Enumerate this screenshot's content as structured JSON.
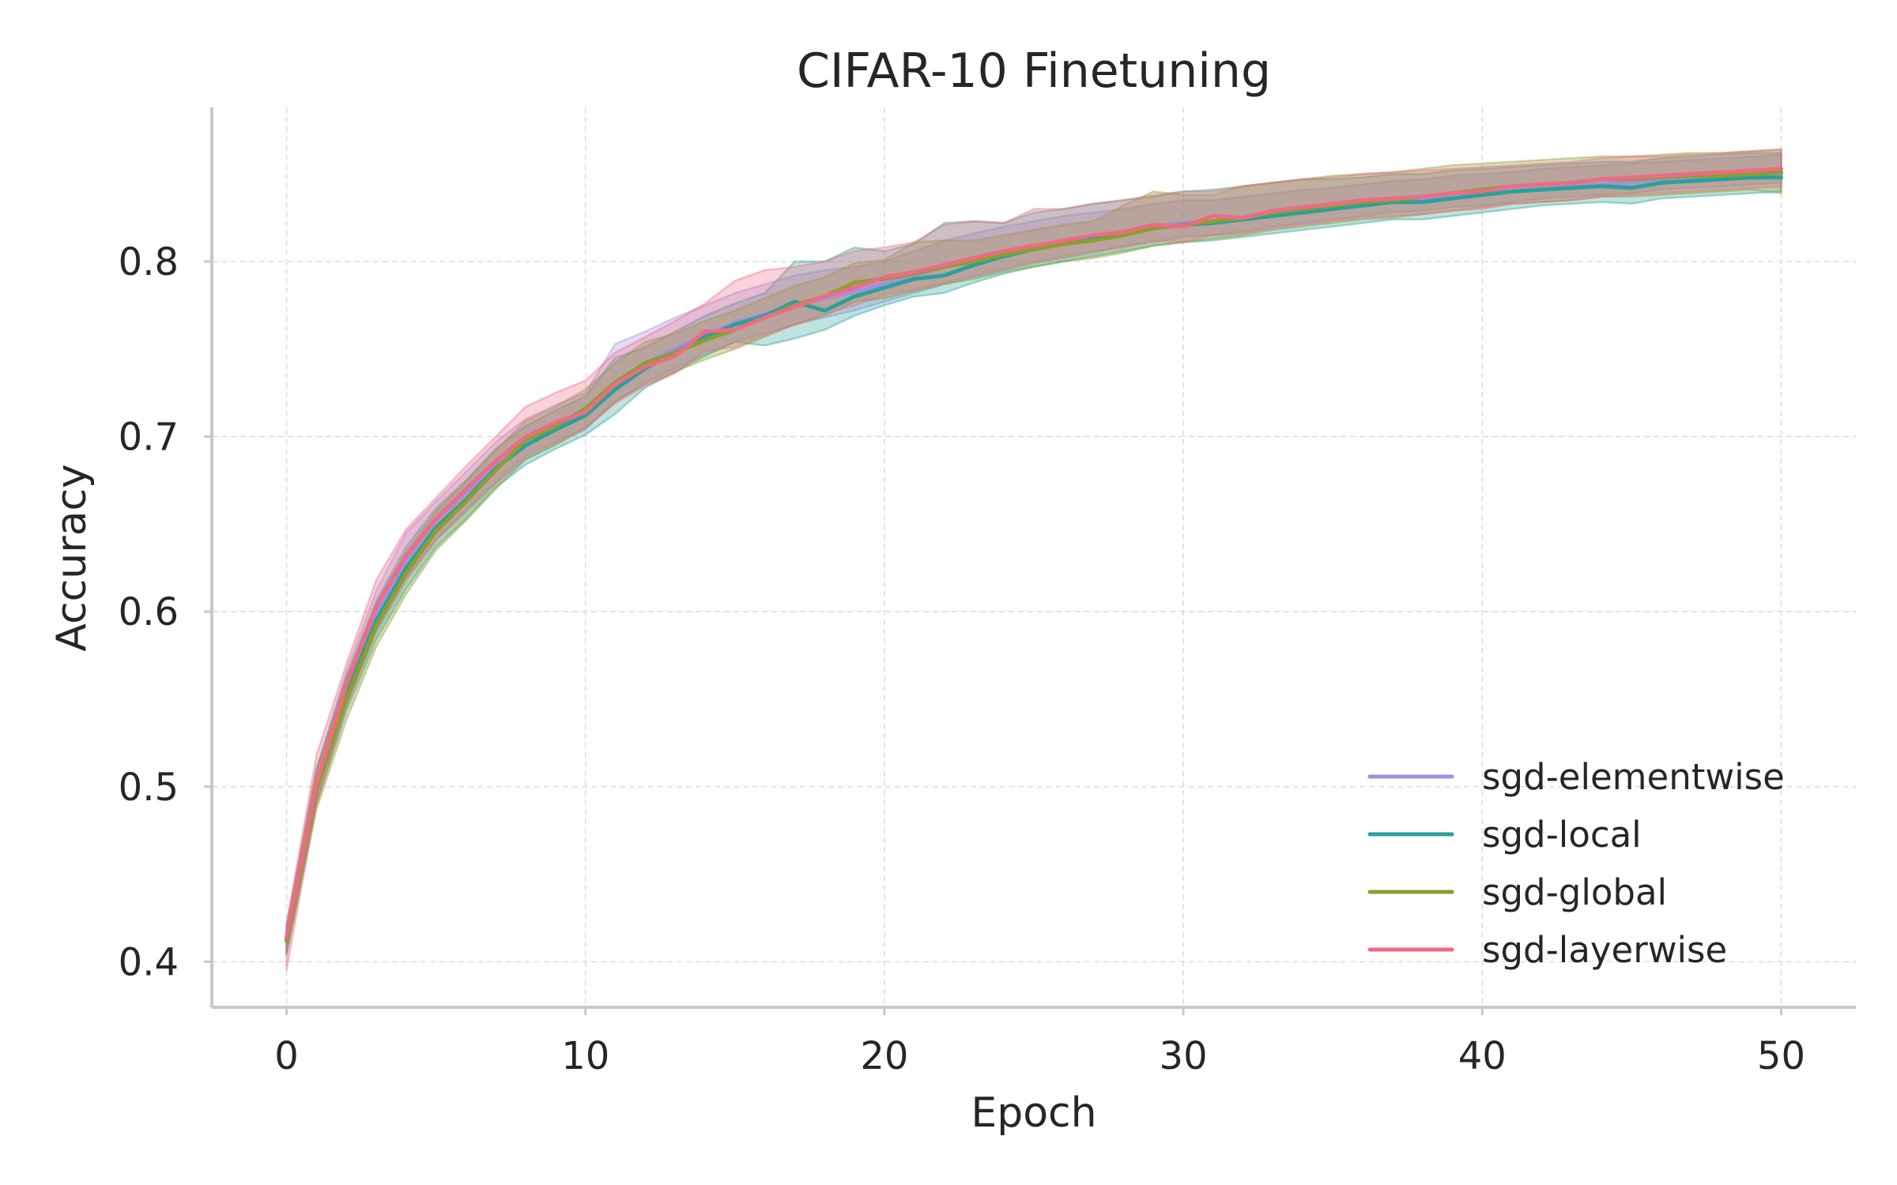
{
  "chart_data": {
    "type": "line",
    "title": "CIFAR-10 Finetuning",
    "xlabel": "Epoch",
    "ylabel": "Accuracy",
    "xlim": [
      -2.5,
      52.5
    ],
    "ylim": [
      0.374,
      0.888
    ],
    "xticks": [
      0,
      10,
      20,
      30,
      40,
      50
    ],
    "yticks": [
      0.4,
      0.5,
      0.6,
      0.7,
      0.8
    ],
    "x_tick_labels": [
      "0",
      "10",
      "20",
      "30",
      "40",
      "50"
    ],
    "y_tick_labels": [
      "0.4",
      "0.5",
      "0.6",
      "0.7",
      "0.8"
    ],
    "grid": true,
    "legend_position": "lower-right",
    "x": [
      0,
      1,
      2,
      3,
      4,
      5,
      6,
      7,
      8,
      9,
      10,
      11,
      12,
      13,
      14,
      15,
      16,
      17,
      18,
      19,
      20,
      21,
      22,
      23,
      24,
      25,
      26,
      27,
      28,
      29,
      30,
      31,
      32,
      33,
      34,
      35,
      36,
      37,
      38,
      39,
      40,
      41,
      42,
      43,
      44,
      45,
      46,
      47,
      48,
      49,
      50
    ],
    "series": [
      {
        "name": "sgd-elementwise",
        "color": "#a08ee6",
        "values": [
          0.413,
          0.5,
          0.556,
          0.6,
          0.63,
          0.652,
          0.668,
          0.684,
          0.698,
          0.706,
          0.714,
          0.731,
          0.742,
          0.75,
          0.758,
          0.765,
          0.77,
          0.775,
          0.779,
          0.783,
          0.787,
          0.792,
          0.797,
          0.801,
          0.805,
          0.808,
          0.811,
          0.814,
          0.817,
          0.82,
          0.822,
          0.823,
          0.825,
          0.827,
          0.829,
          0.831,
          0.833,
          0.835,
          0.836,
          0.838,
          0.839,
          0.84,
          0.842,
          0.843,
          0.844,
          0.845,
          0.847,
          0.848,
          0.849,
          0.85,
          0.85
        ],
        "lower": [
          0.405,
          0.491,
          0.546,
          0.588,
          0.618,
          0.641,
          0.657,
          0.673,
          0.687,
          0.696,
          0.704,
          0.72,
          0.731,
          0.739,
          0.747,
          0.754,
          0.759,
          0.764,
          0.768,
          0.772,
          0.777,
          0.782,
          0.787,
          0.791,
          0.795,
          0.799,
          0.802,
          0.805,
          0.809,
          0.811,
          0.814,
          0.815,
          0.817,
          0.82,
          0.822,
          0.824,
          0.826,
          0.828,
          0.829,
          0.831,
          0.832,
          0.834,
          0.836,
          0.837,
          0.838,
          0.839,
          0.841,
          0.842,
          0.843,
          0.844,
          0.845
        ],
        "upper": [
          0.42,
          0.51,
          0.566,
          0.612,
          0.645,
          0.663,
          0.68,
          0.697,
          0.71,
          0.718,
          0.725,
          0.753,
          0.76,
          0.768,
          0.775,
          0.782,
          0.787,
          0.792,
          0.795,
          0.797,
          0.8,
          0.806,
          0.812,
          0.816,
          0.82,
          0.823,
          0.826,
          0.828,
          0.83,
          0.833,
          0.835,
          0.835,
          0.837,
          0.839,
          0.841,
          0.842,
          0.844,
          0.846,
          0.847,
          0.849,
          0.85,
          0.851,
          0.853,
          0.854,
          0.855,
          0.856,
          0.857,
          0.858,
          0.859,
          0.86,
          0.861
        ]
      },
      {
        "name": "sgd-local",
        "color": "#2aa198",
        "values": [
          0.412,
          0.5,
          0.553,
          0.595,
          0.625,
          0.648,
          0.664,
          0.682,
          0.695,
          0.704,
          0.712,
          0.727,
          0.739,
          0.748,
          0.757,
          0.764,
          0.769,
          0.777,
          0.772,
          0.78,
          0.785,
          0.79,
          0.792,
          0.798,
          0.803,
          0.807,
          0.81,
          0.813,
          0.816,
          0.819,
          0.821,
          0.822,
          0.824,
          0.826,
          0.828,
          0.83,
          0.832,
          0.834,
          0.834,
          0.836,
          0.838,
          0.84,
          0.841,
          0.842,
          0.843,
          0.842,
          0.845,
          0.846,
          0.847,
          0.848,
          0.848
        ],
        "lower": [
          0.404,
          0.49,
          0.543,
          0.584,
          0.613,
          0.637,
          0.653,
          0.671,
          0.684,
          0.693,
          0.701,
          0.713,
          0.728,
          0.737,
          0.746,
          0.754,
          0.752,
          0.756,
          0.761,
          0.769,
          0.775,
          0.78,
          0.782,
          0.788,
          0.793,
          0.797,
          0.8,
          0.803,
          0.806,
          0.809,
          0.811,
          0.812,
          0.814,
          0.816,
          0.818,
          0.82,
          0.822,
          0.824,
          0.824,
          0.826,
          0.828,
          0.83,
          0.832,
          0.833,
          0.834,
          0.833,
          0.836,
          0.837,
          0.838,
          0.839,
          0.84
        ],
        "upper": [
          0.42,
          0.51,
          0.563,
          0.606,
          0.637,
          0.659,
          0.675,
          0.693,
          0.706,
          0.715,
          0.723,
          0.745,
          0.751,
          0.76,
          0.769,
          0.776,
          0.782,
          0.8,
          0.8,
          0.808,
          0.806,
          0.81,
          0.822,
          0.823,
          0.822,
          0.828,
          0.83,
          0.833,
          0.835,
          0.837,
          0.84,
          0.841,
          0.843,
          0.845,
          0.847,
          0.847,
          0.848,
          0.85,
          0.85,
          0.852,
          0.853,
          0.854,
          0.855,
          0.856,
          0.857,
          0.857,
          0.859,
          0.86,
          0.861,
          0.862,
          0.862
        ]
      },
      {
        "name": "sgd-global",
        "color": "#8c9e2e",
        "values": [
          0.412,
          0.498,
          0.55,
          0.592,
          0.622,
          0.646,
          0.663,
          0.681,
          0.698,
          0.706,
          0.716,
          0.731,
          0.742,
          0.748,
          0.755,
          0.761,
          0.768,
          0.775,
          0.78,
          0.788,
          0.79,
          0.793,
          0.797,
          0.8,
          0.804,
          0.807,
          0.81,
          0.812,
          0.815,
          0.819,
          0.821,
          0.823,
          0.825,
          0.828,
          0.83,
          0.832,
          0.834,
          0.835,
          0.837,
          0.839,
          0.841,
          0.843,
          0.844,
          0.845,
          0.847,
          0.847,
          0.848,
          0.849,
          0.849,
          0.85,
          0.851
        ],
        "lower": [
          0.404,
          0.487,
          0.538,
          0.58,
          0.61,
          0.635,
          0.652,
          0.67,
          0.687,
          0.695,
          0.705,
          0.72,
          0.73,
          0.737,
          0.744,
          0.75,
          0.757,
          0.764,
          0.769,
          0.777,
          0.779,
          0.783,
          0.787,
          0.79,
          0.794,
          0.797,
          0.8,
          0.802,
          0.805,
          0.809,
          0.811,
          0.813,
          0.815,
          0.818,
          0.82,
          0.822,
          0.824,
          0.825,
          0.827,
          0.829,
          0.831,
          0.833,
          0.834,
          0.835,
          0.837,
          0.837,
          0.838,
          0.839,
          0.84,
          0.841,
          0.839
        ],
        "upper": [
          0.42,
          0.509,
          0.562,
          0.604,
          0.634,
          0.657,
          0.674,
          0.692,
          0.709,
          0.717,
          0.727,
          0.742,
          0.754,
          0.759,
          0.766,
          0.772,
          0.779,
          0.786,
          0.791,
          0.799,
          0.801,
          0.811,
          0.812,
          0.812,
          0.815,
          0.818,
          0.821,
          0.823,
          0.832,
          0.84,
          0.838,
          0.838,
          0.843,
          0.845,
          0.847,
          0.849,
          0.85,
          0.851,
          0.853,
          0.855,
          0.856,
          0.857,
          0.858,
          0.859,
          0.86,
          0.86,
          0.861,
          0.862,
          0.862,
          0.863,
          0.864
        ]
      },
      {
        "name": "sgd-layerwise",
        "color": "#ee6b85",
        "values": [
          0.414,
          0.502,
          0.558,
          0.603,
          0.632,
          0.653,
          0.67,
          0.686,
          0.7,
          0.708,
          0.714,
          0.73,
          0.74,
          0.746,
          0.76,
          0.761,
          0.768,
          0.774,
          0.78,
          0.785,
          0.791,
          0.794,
          0.798,
          0.802,
          0.806,
          0.809,
          0.812,
          0.815,
          0.817,
          0.821,
          0.82,
          0.826,
          0.825,
          0.829,
          0.831,
          0.833,
          0.835,
          0.836,
          0.837,
          0.839,
          0.84,
          0.843,
          0.844,
          0.845,
          0.847,
          0.848,
          0.849,
          0.85,
          0.851,
          0.852,
          0.853
        ],
        "lower": [
          0.395,
          0.49,
          0.546,
          0.59,
          0.619,
          0.641,
          0.658,
          0.674,
          0.689,
          0.697,
          0.705,
          0.719,
          0.729,
          0.736,
          0.749,
          0.751,
          0.758,
          0.764,
          0.77,
          0.775,
          0.781,
          0.784,
          0.788,
          0.792,
          0.796,
          0.8,
          0.803,
          0.806,
          0.808,
          0.812,
          0.811,
          0.815,
          0.816,
          0.819,
          0.821,
          0.823,
          0.825,
          0.826,
          0.827,
          0.829,
          0.83,
          0.833,
          0.834,
          0.835,
          0.837,
          0.838,
          0.839,
          0.84,
          0.841,
          0.842,
          0.843
        ],
        "upper": [
          0.422,
          0.518,
          0.57,
          0.618,
          0.647,
          0.665,
          0.683,
          0.7,
          0.717,
          0.725,
          0.732,
          0.748,
          0.757,
          0.766,
          0.776,
          0.789,
          0.795,
          0.797,
          0.8,
          0.806,
          0.808,
          0.811,
          0.821,
          0.823,
          0.822,
          0.83,
          0.83,
          0.833,
          0.835,
          0.838,
          0.84,
          0.84,
          0.843,
          0.845,
          0.847,
          0.848,
          0.85,
          0.851,
          0.852,
          0.853,
          0.854,
          0.855,
          0.856,
          0.857,
          0.859,
          0.86,
          0.86,
          0.861,
          0.862,
          0.863,
          0.864
        ]
      }
    ]
  }
}
